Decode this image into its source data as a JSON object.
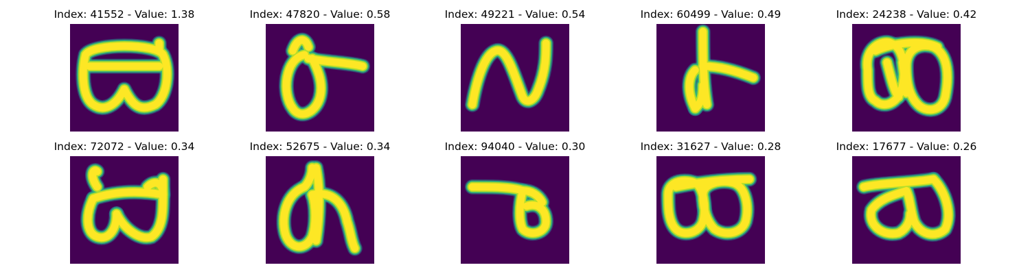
{
  "chart_data": {
    "type": "image-grid",
    "rows": 2,
    "cols": 5,
    "colormap": "viridis",
    "colors": {
      "background": "#440154",
      "stroke_core": "#fde725",
      "stroke_edge_1": "#b5de2b",
      "stroke_edge_2": "#35b779",
      "stroke_edge_3": "#26828e"
    },
    "panels": [
      {
        "title": "Index: 41552 - Value: 1.38",
        "index": 41552,
        "value": 1.38,
        "glyph": "double-loop-u"
      },
      {
        "title": "Index: 47820 - Value: 0.58",
        "index": 47820,
        "value": 0.58,
        "glyph": "loop-with-bar"
      },
      {
        "title": "Index: 49221 - Value: 0.54",
        "index": 49221,
        "value": 0.54,
        "glyph": "n-shape"
      },
      {
        "title": "Index: 60499 - Value: 0.49",
        "index": 60499,
        "value": 0.49,
        "glyph": "stem-with-branch"
      },
      {
        "title": "Index: 24238 - Value: 0.42",
        "index": 24238,
        "value": 0.42,
        "glyph": "double-o"
      },
      {
        "title": "Index: 72072 - Value: 0.34",
        "index": 72072,
        "value": 0.34,
        "glyph": "double-loop-tall"
      },
      {
        "title": "Index: 52675 - Value: 0.34",
        "index": 52675,
        "value": 0.34,
        "glyph": "loop-with-stem"
      },
      {
        "title": "Index: 94040 - Value: 0.30",
        "index": 94040,
        "value": 0.3,
        "glyph": "bar-with-loop"
      },
      {
        "title": "Index: 31627 - Value: 0.28",
        "index": 31627,
        "value": 0.28,
        "glyph": "double-loop-wide"
      },
      {
        "title": "Index: 17677 - Value: 0.26",
        "index": 17677,
        "value": 0.26,
        "glyph": "double-loop-open"
      }
    ]
  }
}
